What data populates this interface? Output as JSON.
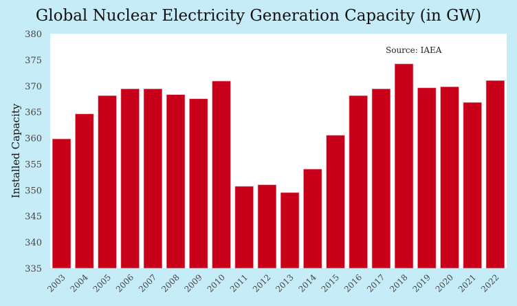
{
  "chart_data": {
    "type": "bar",
    "title": "Global Nuclear Electricity Generation Capacity (in GW)",
    "annotation": "Source: IAEA",
    "xlabel": "",
    "ylabel": "Installed Capacity",
    "ylim": [
      335,
      380
    ],
    "yticks": [
      335,
      340,
      345,
      350,
      355,
      360,
      365,
      370,
      375,
      380
    ],
    "grid": false,
    "bar_color": "#c8001a",
    "background_color": "#c6ecf8",
    "plot_background": "#ffffff",
    "categories": [
      "2003",
      "2004",
      "2005",
      "2006",
      "2007",
      "2008",
      "2009",
      "2010",
      "2011",
      "2012",
      "2013",
      "2014",
      "2015",
      "2016",
      "2017",
      "2018",
      "2019",
      "2020",
      "2021",
      "2022"
    ],
    "values": [
      359.8,
      364.6,
      368.1,
      369.4,
      369.4,
      368.3,
      367.5,
      370.9,
      350.7,
      351.0,
      349.5,
      354.0,
      360.5,
      368.1,
      369.4,
      374.2,
      369.6,
      369.8,
      366.8,
      371.0
    ]
  }
}
